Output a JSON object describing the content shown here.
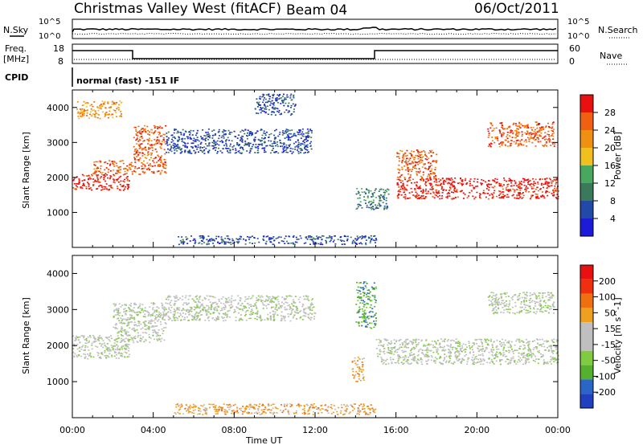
{
  "header": {
    "title": "Christmas Valley West (fitACF)",
    "beam": "Beam 04",
    "date": "06/Oct/2011"
  },
  "top_panel": {
    "left_label": "N.Sky",
    "right_label": "N.Search",
    "left_ticks": [
      "10^5",
      "10^0"
    ],
    "right_ticks": [
      "10^5",
      "10^0"
    ]
  },
  "freq_panel": {
    "left_label_1": "Freq.",
    "left_label_2": "[MHz]",
    "left_ticks": [
      "18",
      "8"
    ],
    "right_ticks": [
      "60",
      "0"
    ],
    "right_label": "Nave"
  },
  "cpid": {
    "label": "CPID",
    "text": "normal (fast) -151 IF"
  },
  "colors": {
    "power": [
      "#1b1bd8",
      "#2248a8",
      "#3a7a5a",
      "#48a860",
      "#f0c020",
      "#f09010",
      "#f06010",
      "#e81010"
    ],
    "velocity": [
      "#2040c0",
      "#2a66c8",
      "#55b030",
      "#80cc40",
      "#bfbfbf",
      "#bfbfbf",
      "#f0a020",
      "#f07010",
      "#ee3010",
      "#e81010"
    ]
  },
  "chart_data": [
    {
      "type": "heatmap",
      "name": "power",
      "ylabel": "Slant Range [km]",
      "xlabel": "",
      "yticks": [
        "1000",
        "2000",
        "3000",
        "4000"
      ],
      "colorbar": {
        "label": "Power [dB]",
        "ticks": [
          "28",
          "24",
          "20",
          "16",
          "12",
          "8",
          "4"
        ]
      },
      "regions": [
        {
          "t0": 0.0,
          "t1": 2.8,
          "r0": 1650,
          "r1": 2100,
          "level": 7
        },
        {
          "t0": 1.0,
          "t1": 3.0,
          "r0": 2100,
          "r1": 2500,
          "level": 6
        },
        {
          "t0": 3.0,
          "t1": 4.6,
          "r0": 2100,
          "r1": 3500,
          "level": 6
        },
        {
          "t0": 0.2,
          "t1": 2.4,
          "r0": 3700,
          "r1": 4200,
          "level": 5
        },
        {
          "t0": 4.6,
          "t1": 11.8,
          "r0": 2700,
          "r1": 3400,
          "level": 1
        },
        {
          "t0": 9.0,
          "t1": 11.0,
          "r0": 3800,
          "r1": 4400,
          "level": 1
        },
        {
          "t0": 14.0,
          "t1": 15.6,
          "r0": 1100,
          "r1": 1700,
          "level": 2
        },
        {
          "t0": 16.0,
          "t1": 24.0,
          "r0": 1400,
          "r1": 2000,
          "level": 7
        },
        {
          "t0": 16.0,
          "t1": 18.0,
          "r0": 2000,
          "r1": 2800,
          "level": 6
        },
        {
          "t0": 20.5,
          "t1": 23.8,
          "r0": 2900,
          "r1": 3600,
          "level": 6
        },
        {
          "t0": 5.2,
          "t1": 15.0,
          "r0": 100,
          "r1": 350,
          "level": 1
        }
      ]
    },
    {
      "type": "heatmap",
      "name": "velocity",
      "ylabel": "Slant Range [km]",
      "xlabel": "Time UT",
      "xticks": [
        "00:00",
        "04:00",
        "08:00",
        "12:00",
        "16:00",
        "20:00",
        "00:00"
      ],
      "yticks": [
        "1000",
        "2000",
        "3000",
        "4000"
      ],
      "colorbar": {
        "label": "Velocity [m s^-1]",
        "ticks": [
          "200",
          "100",
          "50",
          "15",
          "-15",
          "-50",
          "-100",
          "-200"
        ]
      },
      "regions": [
        {
          "t0": 0.0,
          "t1": 2.8,
          "r0": 1650,
          "r1": 2300,
          "level": 4
        },
        {
          "t0": 2.0,
          "t1": 4.6,
          "r0": 2100,
          "r1": 3200,
          "level": 4
        },
        {
          "t0": 4.6,
          "t1": 12.0,
          "r0": 2700,
          "r1": 3400,
          "level": 4
        },
        {
          "t0": 13.8,
          "t1": 14.4,
          "r0": 1000,
          "r1": 1700,
          "level": 6
        },
        {
          "t0": 15.0,
          "t1": 24.0,
          "r0": 1500,
          "r1": 2200,
          "level": 4
        },
        {
          "t0": 14.0,
          "t1": 15.0,
          "r0": 2500,
          "r1": 3800,
          "level": 2
        },
        {
          "t0": 20.5,
          "t1": 23.8,
          "r0": 2900,
          "r1": 3500,
          "level": 4
        },
        {
          "t0": 5.0,
          "t1": 15.0,
          "r0": 100,
          "r1": 400,
          "level": 6
        }
      ]
    }
  ]
}
